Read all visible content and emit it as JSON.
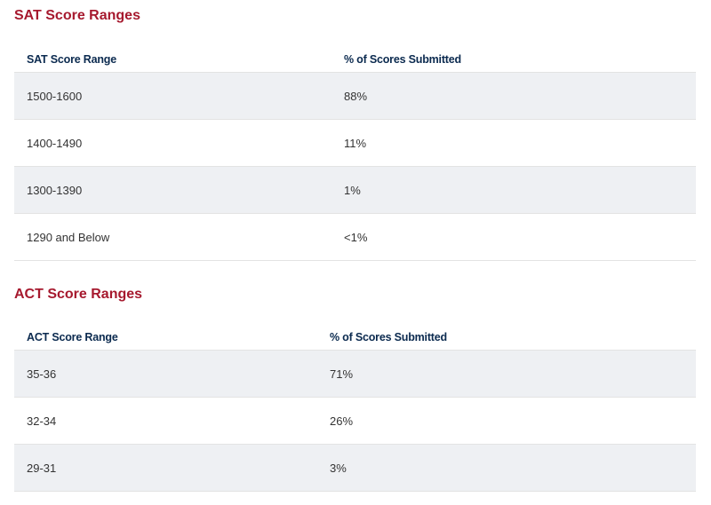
{
  "sat": {
    "title": "SAT Score Ranges",
    "headers": [
      "SAT Score Range",
      "% of Scores Submitted"
    ],
    "rows": [
      [
        "1500-1600",
        "88%"
      ],
      [
        "1400-1490",
        "11%"
      ],
      [
        "1300-1390",
        "1%"
      ],
      [
        "1290 and Below",
        "<1%"
      ]
    ]
  },
  "act": {
    "title": "ACT Score Ranges",
    "headers": [
      "ACT Score Range",
      "% of Scores Submitted"
    ],
    "rows": [
      [
        "35-36",
        "71%"
      ],
      [
        "32-34",
        "26%"
      ],
      [
        "29-31",
        "3%"
      ]
    ]
  },
  "colors": {
    "title": "#a6192e",
    "header_text": "#0b2a4f",
    "stripe": "#eef0f3"
  }
}
